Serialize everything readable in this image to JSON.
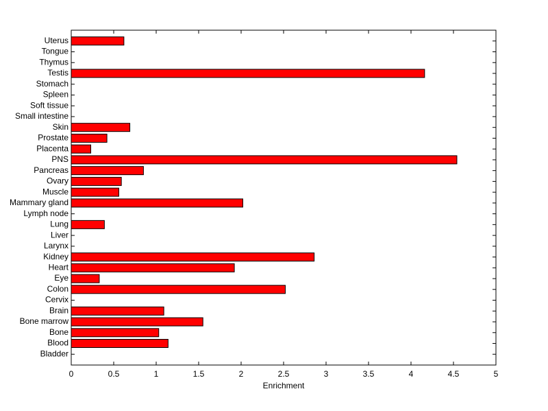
{
  "chart_data": {
    "type": "barh",
    "x_label": "Enrichment",
    "categories": [
      "Uterus",
      "Tongue",
      "Thymus",
      "Testis",
      "Stomach",
      "Spleen",
      "Soft tissue",
      "Small intestine",
      "Skin",
      "Prostate",
      "Placenta",
      "PNS",
      "Pancreas",
      "Ovary",
      "Muscle",
      "Mammary gland",
      "Lymph node",
      "Lung",
      "Liver",
      "Larynx",
      "Kidney",
      "Heart",
      "Eye",
      "Colon",
      "Cervix",
      "Brain",
      "Bone marrow",
      "Bone",
      "Blood",
      "Bladder"
    ],
    "values": [
      0.62,
      0,
      0,
      4.16,
      0,
      0,
      0,
      0,
      0.69,
      0.42,
      0.23,
      4.54,
      0.85,
      0.59,
      0.56,
      2.02,
      0,
      0.39,
      0,
      0,
      2.86,
      1.92,
      0.33,
      2.52,
      0,
      1.09,
      1.55,
      1.03,
      1.14,
      0
    ],
    "color": "#ff0000",
    "xlim": [
      0,
      5
    ],
    "xticks": [
      0,
      0.5,
      1,
      1.5,
      2,
      2.5,
      3,
      3.5,
      4,
      4.5,
      5
    ]
  }
}
